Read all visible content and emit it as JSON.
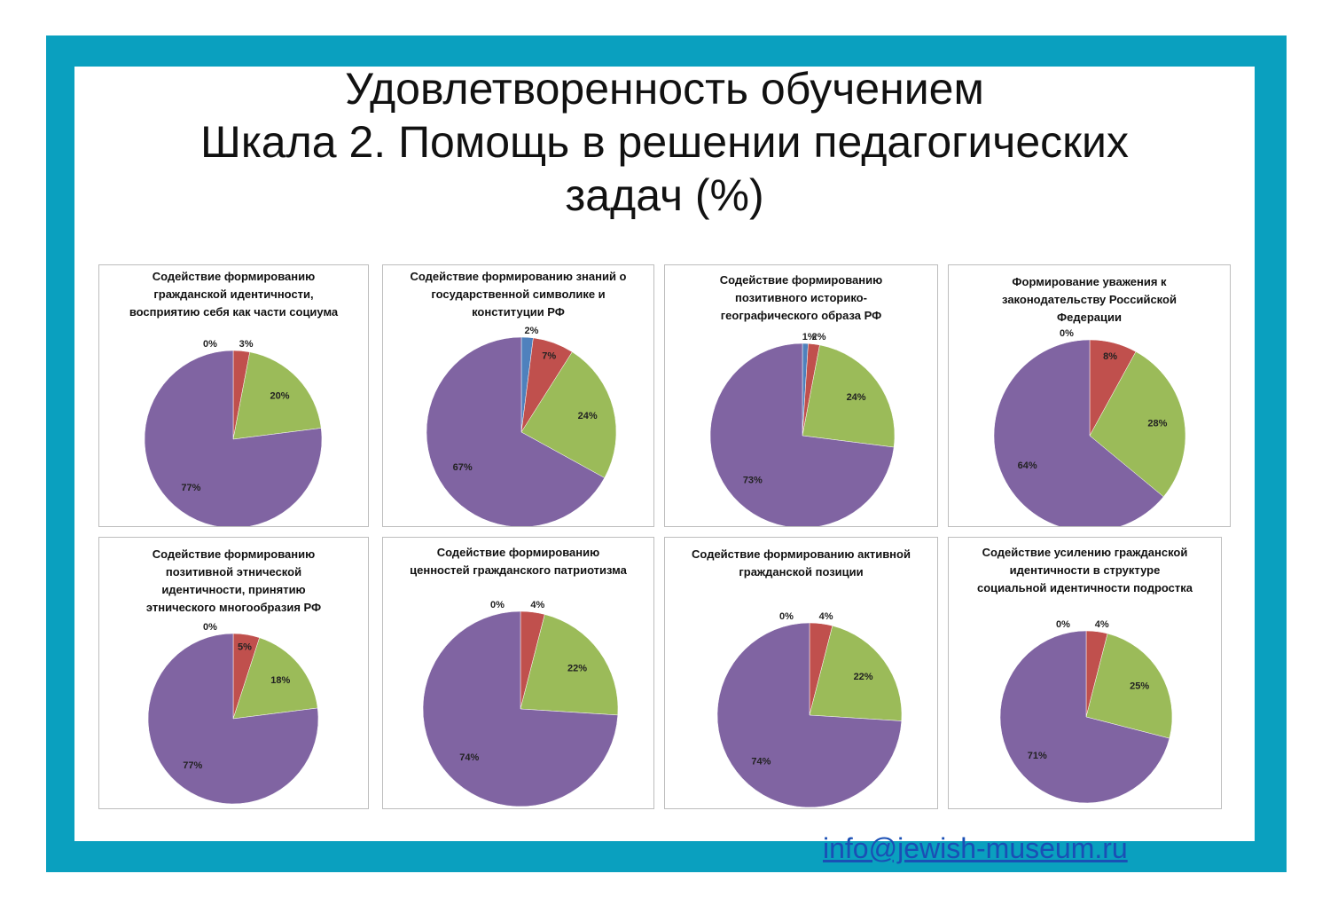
{
  "title": {
    "line1": "Удовлетворенность обучением",
    "line2": "Шкала 2. Помощь в решении педагогических",
    "line3": "задач (%)"
  },
  "footer": {
    "email": "info@jewish-museum.ru"
  },
  "colors": {
    "frame": "#0aa0bf",
    "blue": "#4f81bd",
    "red": "#c0504d",
    "green": "#9bbb59",
    "purple": "#8064a2"
  },
  "chart_data": [
    {
      "type": "pie",
      "title": "Содействие формированию гражданской идентичности, восприятию себя как части социума",
      "slices": [
        {
          "value": 0,
          "label": "0%",
          "color": "#4f81bd"
        },
        {
          "value": 3,
          "label": "3%",
          "color": "#c0504d"
        },
        {
          "value": 20,
          "label": "20%",
          "color": "#9bbb59"
        },
        {
          "value": 77,
          "label": "77%",
          "color": "#8064a2"
        }
      ]
    },
    {
      "type": "pie",
      "title": "Содействие формированию знаний о государственной символике и конституции РФ",
      "slices": [
        {
          "value": 2,
          "label": "2%",
          "color": "#4f81bd"
        },
        {
          "value": 7,
          "label": "7%",
          "color": "#c0504d"
        },
        {
          "value": 24,
          "label": "24%",
          "color": "#9bbb59"
        },
        {
          "value": 67,
          "label": "67%",
          "color": "#8064a2"
        }
      ]
    },
    {
      "type": "pie",
      "title": "Содействие формированию позитивного историко-географического образа РФ",
      "slices": [
        {
          "value": 1,
          "label": "1%",
          "color": "#4f81bd"
        },
        {
          "value": 2,
          "label": "2%",
          "color": "#c0504d"
        },
        {
          "value": 24,
          "label": "24%",
          "color": "#9bbb59"
        },
        {
          "value": 73,
          "label": "73%",
          "color": "#8064a2"
        }
      ]
    },
    {
      "type": "pie",
      "title": "Формирование уважения к законодательству Российской Федерации",
      "slices": [
        {
          "value": 0,
          "label": "0%",
          "color": "#4f81bd"
        },
        {
          "value": 8,
          "label": "8%",
          "color": "#c0504d"
        },
        {
          "value": 28,
          "label": "28%",
          "color": "#9bbb59"
        },
        {
          "value": 64,
          "label": "64%",
          "color": "#8064a2"
        }
      ]
    },
    {
      "type": "pie",
      "title": "Содействие формированию позитивной этнической идентичности, принятию этнического многообразия РФ",
      "slices": [
        {
          "value": 0,
          "label": "0%",
          "color": "#4f81bd"
        },
        {
          "value": 5,
          "label": "5%",
          "color": "#c0504d"
        },
        {
          "value": 18,
          "label": "18%",
          "color": "#9bbb59"
        },
        {
          "value": 77,
          "label": "77%",
          "color": "#8064a2"
        }
      ]
    },
    {
      "type": "pie",
      "title": "Содействие формированию ценностей гражданского патриотизма",
      "slices": [
        {
          "value": 0,
          "label": "0%",
          "color": "#4f81bd"
        },
        {
          "value": 4,
          "label": "4%",
          "color": "#c0504d"
        },
        {
          "value": 22,
          "label": "22%",
          "color": "#9bbb59"
        },
        {
          "value": 74,
          "label": "74%",
          "color": "#8064a2"
        }
      ]
    },
    {
      "type": "pie",
      "title": "Содействие формированию активной гражданской позиции",
      "slices": [
        {
          "value": 0,
          "label": "0%",
          "color": "#4f81bd"
        },
        {
          "value": 4,
          "label": "4%",
          "color": "#c0504d"
        },
        {
          "value": 22,
          "label": "22%",
          "color": "#9bbb59"
        },
        {
          "value": 74,
          "label": "74%",
          "color": "#8064a2"
        }
      ]
    },
    {
      "type": "pie",
      "title": "Содействие усилению гражданской идентичности в структуре социальной идентичности подростка",
      "slices": [
        {
          "value": 0,
          "label": "0%",
          "color": "#4f81bd"
        },
        {
          "value": 4,
          "label": "4%",
          "color": "#c0504d"
        },
        {
          "value": 25,
          "label": "25%",
          "color": "#9bbb59"
        },
        {
          "value": 71,
          "label": "71%",
          "color": "#8064a2"
        }
      ]
    }
  ]
}
